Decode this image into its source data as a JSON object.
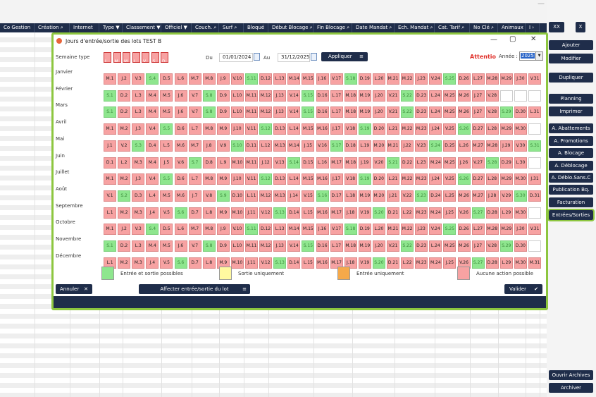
{
  "header": [
    "Co Gestion",
    "Création ⌕",
    "Internet",
    "Type ▼",
    "Classement ▼",
    "Officiel ▼",
    "Couch. ⌕",
    "Surf ⌕",
    "Bloqué",
    "Début Blocage ⌕",
    "Fin Blocage ⌕",
    "Date Mandat ⌕",
    "Ech. Mandat ⌕",
    "Cat. Tarif ⌕",
    "No Clé ⌕",
    "Animaux",
    "I ›"
  ],
  "right": {
    "xx": "XX",
    "x": "X",
    "buttons": [
      "Ajouter",
      "Modifier",
      "Dupliquer",
      "Planning",
      "Imprimer",
      "A. Abattements",
      "A. Promotions",
      "A. Blocage",
      "A. Déblocage",
      "A. Déblo.Sans.C",
      "Publication Bq.",
      "Facturation",
      "Entrées/Sorties"
    ],
    "bottom": [
      "Ouvrir Archives",
      "Archiver"
    ]
  },
  "dialog": {
    "title": "Jours d'entrée/sortie des lots TEST B",
    "semaine_label": "Semaine type",
    "week_days": [
      "L.",
      "M.",
      "M.",
      "J.",
      "V.",
      "S.",
      "D."
    ],
    "du_label": "Du",
    "du": "01/01/2024",
    "au_label": "Au",
    "au": "31/12/2025",
    "apply": "Appliquer",
    "attention": "Attentio",
    "annee_label": "Année :",
    "annee": "2025",
    "months": [
      "Janvier",
      "Février",
      "Mars",
      "Avril",
      "Mai",
      "Juin",
      "Juillet",
      "Août",
      "Septembre",
      "Octobre",
      "Novembre",
      "Décembre"
    ],
    "first_dow": [
      2,
      5,
      5,
      1,
      3,
      6,
      1,
      4,
      0,
      2,
      5,
      0
    ],
    "month_len": [
      31,
      28,
      31,
      30,
      31,
      30,
      31,
      31,
      30,
      31,
      30,
      31
    ],
    "day_letters": [
      "L",
      "M",
      "M",
      "J",
      "V",
      "S",
      "D"
    ],
    "green_days": [
      "1-4",
      "1-11",
      "1-18",
      "1-25",
      "2-1",
      "2-8",
      "2-15",
      "2-22",
      "3-1",
      "3-8",
      "3-15",
      "3-22",
      "3-29",
      "4-5",
      "4-12",
      "4-19",
      "4-26",
      "5-3",
      "5-10",
      "5-17",
      "5-24",
      "5-31",
      "6-7",
      "6-14",
      "6-21",
      "6-28",
      "7-5",
      "7-12",
      "7-19",
      "7-26",
      "8-2",
      "8-9",
      "8-16",
      "8-23",
      "8-30",
      "9-6",
      "9-13",
      "9-20",
      "9-27",
      "10-4",
      "10-11",
      "10-18",
      "10-25",
      "11-1",
      "11-8",
      "11-15",
      "11-22",
      "11-29",
      "12-6",
      "12-13",
      "12-20",
      "12-27"
    ],
    "legend": [
      "Entrée et sortie possibles",
      "Sortie uniquement",
      "Entrée uniquement",
      "Aucune action possible"
    ],
    "legend_colors": [
      "#8ee68e",
      "#fff9a0",
      "#f6a94a",
      "#f7a2a2"
    ],
    "annuler": "Annuler",
    "affecter": "Affecter entrée/sortie du lot",
    "valider": "Valider"
  }
}
